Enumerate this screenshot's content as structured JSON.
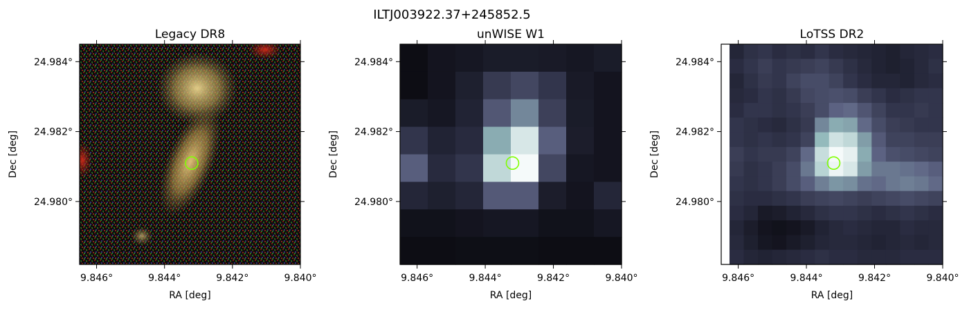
{
  "figure": {
    "title": "ILTJ003922.37+245852.5"
  },
  "chart_data": [
    {
      "type": "heatmap",
      "title": "Legacy DR8",
      "xlabel": "RA [deg]",
      "ylabel": "Dec [deg]",
      "xticks": [
        "9.846°",
        "9.844°",
        "9.842°",
        "9.840°"
      ],
      "yticks": [
        "24.984°",
        "24.982°",
        "24.980°"
      ],
      "x_tick_values": [
        9.846,
        9.844,
        9.842,
        9.84
      ],
      "y_tick_values": [
        24.984,
        24.982,
        24.98
      ],
      "source_ra": 9.8432,
      "source_dec": 24.9811,
      "image_style": "noisy RGB optical cutout with two extended yellowish galaxies"
    },
    {
      "type": "heatmap",
      "title": "unWISE W1",
      "xlabel": "RA [deg]",
      "ylabel": "Dec [deg]",
      "xticks": [
        "9.846°",
        "9.844°",
        "9.842°",
        "9.840°"
      ],
      "yticks": [
        "24.984°",
        "24.982°",
        "24.980°"
      ],
      "x_tick_values": [
        9.846,
        9.844,
        9.842,
        9.84
      ],
      "y_tick_values": [
        24.984,
        24.982,
        24.98
      ],
      "source_ra": 9.8432,
      "source_dec": 24.9811,
      "grid_rows": 8,
      "grid_cols": 8,
      "intensity": [
        [
          0.05,
          0.1,
          0.12,
          0.15,
          0.15,
          0.14,
          0.12,
          0.15
        ],
        [
          0.05,
          0.1,
          0.18,
          0.32,
          0.38,
          0.3,
          0.14,
          0.1
        ],
        [
          0.15,
          0.12,
          0.2,
          0.45,
          0.6,
          0.35,
          0.15,
          0.1
        ],
        [
          0.3,
          0.2,
          0.25,
          0.7,
          0.92,
          0.48,
          0.16,
          0.1
        ],
        [
          0.48,
          0.25,
          0.3,
          0.86,
          1.0,
          0.38,
          0.12,
          0.1
        ],
        [
          0.22,
          0.18,
          0.22,
          0.46,
          0.46,
          0.16,
          0.1,
          0.22
        ],
        [
          0.08,
          0.08,
          0.1,
          0.12,
          0.12,
          0.08,
          0.08,
          0.12
        ],
        [
          0.05,
          0.05,
          0.06,
          0.06,
          0.06,
          0.05,
          0.05,
          0.05
        ]
      ]
    },
    {
      "type": "heatmap",
      "title": "LoTSS DR2",
      "xlabel": "RA [deg]",
      "ylabel": "Dec [deg]",
      "xticks": [
        "9.846°",
        "9.844°",
        "9.842°",
        "9.840°"
      ],
      "yticks": [
        "24.984°",
        "24.982°",
        "24.980°"
      ],
      "x_tick_values": [
        9.846,
        9.844,
        9.842,
        9.84
      ],
      "y_tick_values": [
        24.984,
        24.982,
        24.98
      ],
      "source_ra": 9.8432,
      "source_dec": 24.9811,
      "grid_rows": 15,
      "grid_cols": 15,
      "intensity": [
        [
          0.22,
          0.28,
          0.3,
          0.26,
          0.28,
          0.26,
          0.3,
          0.26,
          0.24,
          0.22,
          0.2,
          0.18,
          0.22,
          0.24,
          0.26
        ],
        [
          0.26,
          0.3,
          0.34,
          0.3,
          0.32,
          0.34,
          0.36,
          0.32,
          0.28,
          0.24,
          0.2,
          0.18,
          0.2,
          0.24,
          0.28
        ],
        [
          0.22,
          0.28,
          0.32,
          0.3,
          0.36,
          0.4,
          0.4,
          0.36,
          0.3,
          0.26,
          0.22,
          0.22,
          0.2,
          0.24,
          0.26
        ],
        [
          0.24,
          0.26,
          0.3,
          0.28,
          0.32,
          0.38,
          0.4,
          0.42,
          0.4,
          0.34,
          0.3,
          0.26,
          0.28,
          0.3,
          0.3
        ],
        [
          0.26,
          0.3,
          0.3,
          0.28,
          0.3,
          0.34,
          0.4,
          0.5,
          0.52,
          0.44,
          0.36,
          0.3,
          0.3,
          0.32,
          0.3
        ],
        [
          0.3,
          0.28,
          0.26,
          0.24,
          0.28,
          0.32,
          0.6,
          0.7,
          0.68,
          0.52,
          0.4,
          0.34,
          0.32,
          0.3,
          0.3
        ],
        [
          0.3,
          0.28,
          0.3,
          0.28,
          0.3,
          0.36,
          0.74,
          0.9,
          0.86,
          0.66,
          0.46,
          0.36,
          0.36,
          0.34,
          0.34
        ],
        [
          0.34,
          0.3,
          0.32,
          0.32,
          0.36,
          0.52,
          0.88,
          1.0,
          0.96,
          0.7,
          0.5,
          0.42,
          0.4,
          0.38,
          0.36
        ],
        [
          0.32,
          0.28,
          0.3,
          0.34,
          0.4,
          0.56,
          0.84,
          0.98,
          0.92,
          0.66,
          0.56,
          0.56,
          0.54,
          0.52,
          0.48
        ],
        [
          0.3,
          0.28,
          0.3,
          0.34,
          0.4,
          0.48,
          0.58,
          0.64,
          0.62,
          0.54,
          0.52,
          0.56,
          0.58,
          0.56,
          0.52
        ],
        [
          0.28,
          0.26,
          0.26,
          0.28,
          0.3,
          0.34,
          0.36,
          0.38,
          0.36,
          0.34,
          0.36,
          0.38,
          0.4,
          0.38,
          0.36
        ],
        [
          0.26,
          0.22,
          0.14,
          0.16,
          0.2,
          0.24,
          0.28,
          0.3,
          0.3,
          0.28,
          0.26,
          0.28,
          0.3,
          0.28,
          0.26
        ],
        [
          0.22,
          0.16,
          0.1,
          0.08,
          0.1,
          0.14,
          0.2,
          0.24,
          0.26,
          0.24,
          0.22,
          0.22,
          0.26,
          0.24,
          0.24
        ],
        [
          0.24,
          0.18,
          0.12,
          0.1,
          0.14,
          0.18,
          0.22,
          0.24,
          0.24,
          0.22,
          0.2,
          0.22,
          0.24,
          0.22,
          0.24
        ],
        [
          0.26,
          0.22,
          0.2,
          0.22,
          0.24,
          0.26,
          0.28,
          0.26,
          0.26,
          0.24,
          0.24,
          0.24,
          0.26,
          0.26,
          0.26
        ]
      ]
    }
  ]
}
